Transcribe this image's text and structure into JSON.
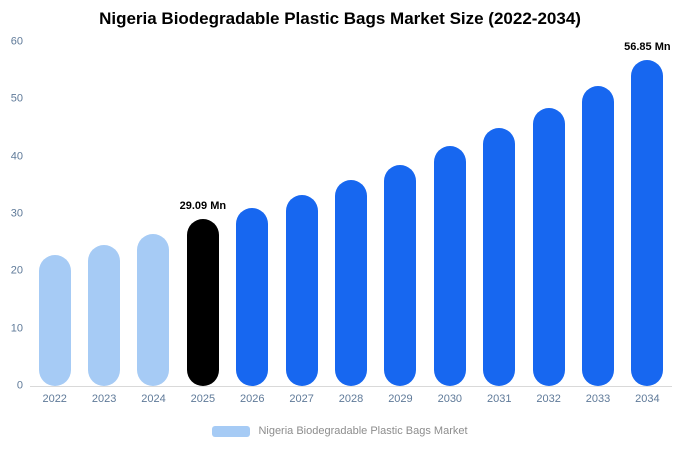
{
  "title": "Nigeria Biodegradable Plastic Bags Market Size (2022-2034)",
  "legend": {
    "label": "Nigeria Biodegradable Plastic Bags Market",
    "swatch_color": "#a6cbf5"
  },
  "colors": {
    "light_blue": "#a6cbf5",
    "highlight_black": "#000000",
    "primary_blue": "#1767f0",
    "axis_label": "#5f7a99",
    "baseline": "#d9d9d9"
  },
  "chart_data": {
    "type": "bar",
    "title": "Nigeria Biodegradable Plastic Bags Market Size (2022-2034)",
    "categories": [
      "2022",
      "2023",
      "2024",
      "2025",
      "2026",
      "2027",
      "2028",
      "2029",
      "2030",
      "2031",
      "2032",
      "2033",
      "2034"
    ],
    "values": [
      22.8,
      24.6,
      26.5,
      29.09,
      31.0,
      33.3,
      35.9,
      38.6,
      41.8,
      45.0,
      48.5,
      52.3,
      56.85
    ],
    "bar_colors": [
      "#a6cbf5",
      "#a6cbf5",
      "#a6cbf5",
      "#000000",
      "#1767f0",
      "#1767f0",
      "#1767f0",
      "#1767f0",
      "#1767f0",
      "#1767f0",
      "#1767f0",
      "#1767f0",
      "#1767f0"
    ],
    "annotations": [
      {
        "index": 3,
        "text": "29.09 Mn"
      },
      {
        "index": 12,
        "text": "56.85 Mn"
      }
    ],
    "xlabel": "",
    "ylabel": "",
    "ylim": [
      0,
      60
    ],
    "ytick_step": 10,
    "grid": false,
    "legend_position": "bottom",
    "unit": "Mn"
  }
}
